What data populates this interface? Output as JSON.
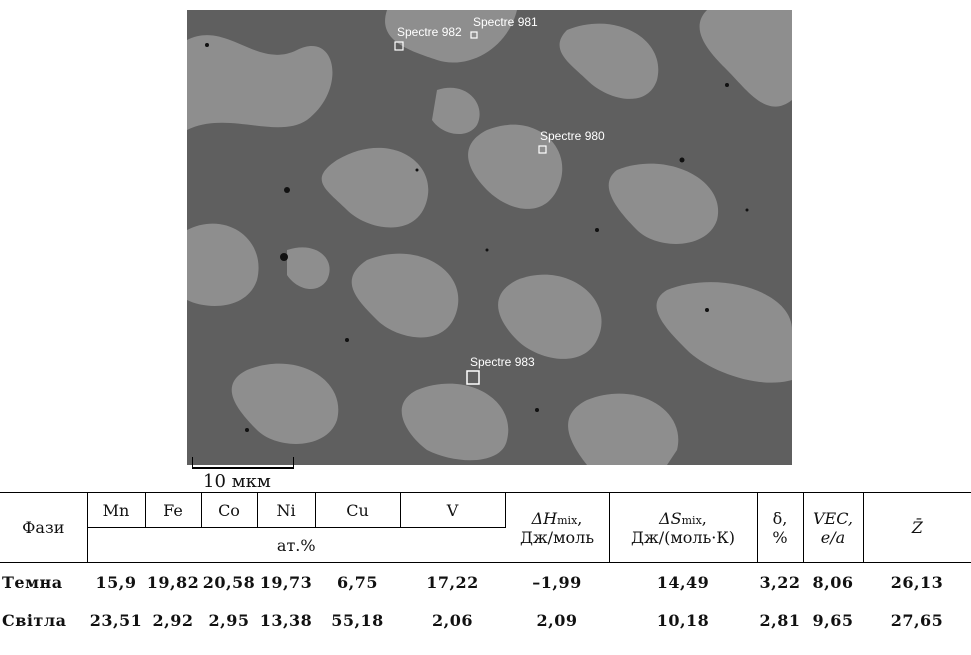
{
  "image": {
    "spectra_labels": [
      "Spectre 982",
      "Spectre 981",
      "Spectre 980",
      "Spectre 983"
    ],
    "scale_label": "10 мкм"
  },
  "table": {
    "phase_header": "Фази",
    "element_headers": [
      "Mn",
      "Fe",
      "Co",
      "Ni",
      "Cu",
      "V"
    ],
    "unit_row": "ат.%",
    "dH_sym": "ΔH",
    "dH_sub": "mix",
    "dH_unit": ",",
    "dH_unit2": "Дж/моль",
    "dS_sym": "ΔS",
    "dS_sub": "mix",
    "dS_unit": ",",
    "dS_unit2": "Дж/(моль·К)",
    "delta_sym": "δ,",
    "delta_unit": "%",
    "vec_sym": "VEC,",
    "vec_unit": "e/a",
    "z_sym": "Z̄",
    "rows": [
      {
        "phase": "Темна",
        "values": [
          "15,9",
          "19,82",
          "20,58",
          "19,73",
          "6,75",
          "17,22",
          "–1,99",
          "14,49",
          "3,22",
          "8,06",
          "26,13"
        ]
      },
      {
        "phase": "Світла",
        "values": [
          "23,51",
          "2,92",
          "2,95",
          "13,38",
          "55,18",
          "2,06",
          "2,09",
          "10,18",
          "2,81",
          "9,65",
          "27,65"
        ]
      }
    ]
  }
}
